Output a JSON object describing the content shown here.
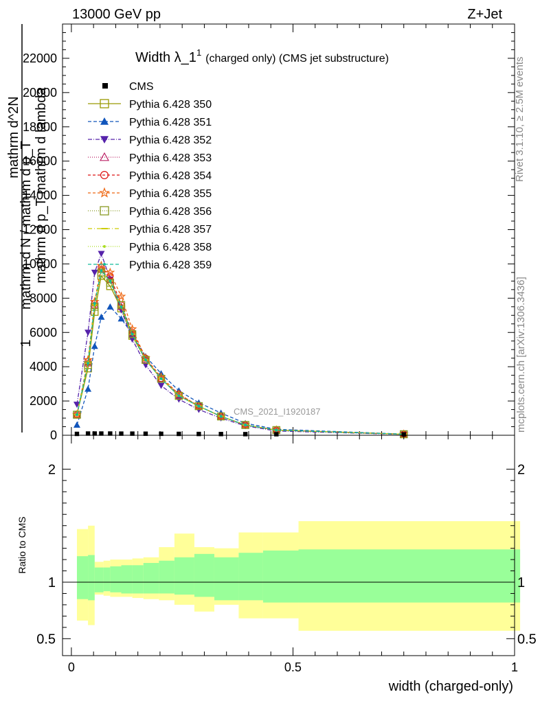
{
  "header": {
    "energy_label": "13000 GeV pp",
    "process_label": "Z+Jet"
  },
  "side_labels": {
    "rivet": "Rivet 3.1.10, ≥ 2.5M events",
    "mcplots": "mcplots.cern.ch [arXiv:1306.3436]"
  },
  "chart_data": [
    {
      "type": "line",
      "title_main": "Width λ_1",
      "title_sup": "1",
      "title_sub": "(charged only) (CMS jet substructure)",
      "watermark": "CMS_2021_I1920187",
      "ylabel_lines": [
        "1",
        "mathrm d N / mathrm d p_T",
        "mathrm d^2N",
        "mathrm d p_T mathrm d lambda"
      ],
      "ylim": [
        0,
        24000
      ],
      "xlim": [
        -0.02,
        1.0
      ],
      "yticks": [
        0,
        2000,
        4000,
        6000,
        8000,
        10000,
        12000,
        14000,
        16000,
        18000,
        20000,
        22000
      ],
      "grid": false,
      "legend_position": "top-left",
      "x": [
        0.0125,
        0.0375,
        0.0525,
        0.0675,
        0.0875,
        0.1125,
        0.1375,
        0.1675,
        0.2025,
        0.2425,
        0.2875,
        0.3375,
        0.3925,
        0.4625,
        0.75
      ],
      "cms_values": [
        40,
        60,
        60,
        60,
        60,
        55,
        55,
        50,
        45,
        40,
        35,
        30,
        25,
        20,
        10
      ],
      "series": [
        {
          "name": "Pythia 6.428 350",
          "color": "#999900",
          "dash": "",
          "marker": "square-open",
          "values": [
            1200,
            3900,
            7200,
            9300,
            8700,
            7400,
            5800,
            4400,
            3300,
            2300,
            1700,
            1100,
            600,
            300,
            60
          ]
        },
        {
          "name": "Pythia 6.428 351",
          "color": "#1155bb",
          "dash": "5,3",
          "marker": "triangle-up-filled",
          "values": [
            600,
            2700,
            5200,
            6900,
            7500,
            6800,
            5900,
            4600,
            3600,
            2600,
            1900,
            1300,
            700,
            350,
            70
          ]
        },
        {
          "name": "Pythia 6.428 352",
          "color": "#5522aa",
          "dash": "6,2,1,2",
          "marker": "triangle-down-filled",
          "values": [
            1800,
            6000,
            9500,
            10600,
            9100,
            7300,
            5600,
            4100,
            2900,
            2100,
            1500,
            1000,
            550,
            250,
            50
          ]
        },
        {
          "name": "Pythia 6.428 353",
          "color": "#bb2266",
          "dash": "1,2",
          "marker": "triangle-up-open",
          "values": [
            1200,
            4200,
            7600,
            9700,
            9100,
            7500,
            5900,
            4400,
            3300,
            2300,
            1700,
            1100,
            600,
            300,
            60
          ]
        },
        {
          "name": "Pythia 6.428 354",
          "color": "#dd1111",
          "dash": "4,3",
          "marker": "circle-open",
          "values": [
            1200,
            4300,
            7700,
            9800,
            9300,
            7600,
            6000,
            4500,
            3300,
            2400,
            1700,
            1100,
            600,
            300,
            60
          ]
        },
        {
          "name": "Pythia 6.428 355",
          "color": "#ee6611",
          "dash": "4,3",
          "marker": "star-open",
          "values": [
            1200,
            4400,
            7800,
            9900,
            9500,
            8100,
            6200,
            4500,
            3400,
            2400,
            1700,
            1100,
            600,
            300,
            60
          ]
        },
        {
          "name": "Pythia 6.428 356",
          "color": "#889922",
          "dash": "1,2",
          "marker": "square-open",
          "values": [
            1200,
            4100,
            7500,
            9500,
            8900,
            7600,
            5900,
            4400,
            3300,
            2300,
            1700,
            1100,
            600,
            300,
            60
          ]
        },
        {
          "name": "Pythia 6.428 357",
          "color": "#cccc00",
          "dash": "6,3,1,3",
          "marker": "dash",
          "values": [
            1200,
            4200,
            7600,
            9600,
            9000,
            7500,
            5900,
            4400,
            3300,
            2300,
            1700,
            1100,
            600,
            300,
            60
          ]
        },
        {
          "name": "Pythia 6.428 358",
          "color": "#aadd22",
          "dash": "1,2",
          "marker": "dot",
          "values": [
            1200,
            4200,
            7600,
            9600,
            9000,
            7500,
            5900,
            4400,
            3300,
            2300,
            1700,
            1100,
            600,
            300,
            60
          ]
        },
        {
          "name": "Pythia 6.428 359",
          "color": "#11bb99",
          "dash": "5,3",
          "marker": "dot",
          "values": [
            1200,
            4200,
            7700,
            9600,
            9000,
            7500,
            5900,
            4400,
            3300,
            2300,
            1700,
            1100,
            600,
            300,
            60
          ]
        }
      ],
      "legend_cms": "CMS"
    },
    {
      "type": "area",
      "ylabel": "Ratio to CMS",
      "xlabel": "width (charged-only)",
      "ylim": [
        0.35,
        2.3
      ],
      "xlim": [
        -0.02,
        1.0
      ],
      "yticks": [
        0.5,
        1,
        2
      ],
      "ytick_labels": [
        "0.5",
        "1",
        "2"
      ],
      "xticks": [
        0,
        0.5,
        1
      ],
      "xtick_labels": [
        "0",
        "0.5",
        "1"
      ],
      "reference_line": 1,
      "bin_edges": [
        0,
        0.025,
        0.04,
        0.06,
        0.075,
        0.1,
        0.125,
        0.15,
        0.185,
        0.22,
        0.265,
        0.31,
        0.365,
        0.42,
        0.5,
        1.0
      ],
      "green_band": {
        "color": "#99ff99",
        "lower": [
          0.85,
          0.84,
          0.91,
          0.92,
          0.91,
          0.9,
          0.9,
          0.9,
          0.9,
          0.89,
          0.87,
          0.84,
          0.84,
          0.82,
          0.82
        ],
        "upper": [
          1.23,
          1.24,
          1.13,
          1.13,
          1.14,
          1.15,
          1.15,
          1.17,
          1.19,
          1.22,
          1.25,
          1.22,
          1.26,
          1.28,
          1.29
        ]
      },
      "yellow_band": {
        "color": "#ffff99",
        "lower": [
          0.66,
          0.62,
          0.89,
          0.88,
          0.87,
          0.87,
          0.86,
          0.85,
          0.84,
          0.8,
          0.74,
          0.8,
          0.68,
          0.68,
          0.57
        ],
        "upper": [
          1.47,
          1.5,
          1.18,
          1.19,
          1.2,
          1.2,
          1.21,
          1.22,
          1.31,
          1.43,
          1.31,
          1.3,
          1.44,
          1.44,
          1.54
        ]
      }
    }
  ]
}
